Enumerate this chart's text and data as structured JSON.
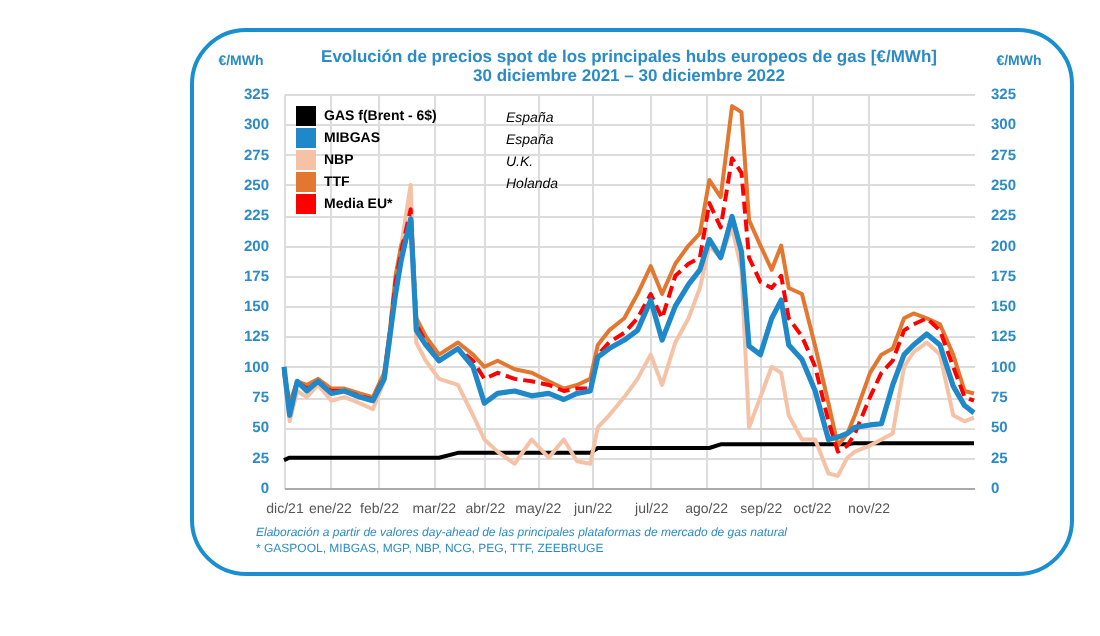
{
  "chart_data": {
    "type": "line",
    "title": "Evolución de precios spot de los principales hubs europeos de gas [€/MWh]",
    "subtitle": "30 diciembre 2021 – 30 diciembre 2022",
    "ylabel": "€/MWh",
    "y2label": "€/MWh",
    "x": [
      "2021-12-30",
      "2022-01-02",
      "2022-01-06",
      "2022-01-11",
      "2022-01-17",
      "2022-01-24",
      "2022-01-31",
      "2022-02-08",
      "2022-02-15",
      "2022-02-21",
      "2022-02-24",
      "2022-02-27",
      "2022-03-02",
      "2022-03-07",
      "2022-03-10",
      "2022-03-15",
      "2022-03-22",
      "2022-04-01",
      "2022-04-09",
      "2022-04-15",
      "2022-04-22",
      "2022-05-01",
      "2022-05-10",
      "2022-05-19",
      "2022-05-27",
      "2022-06-03",
      "2022-06-10",
      "2022-06-14",
      "2022-06-20",
      "2022-06-28",
      "2022-07-05",
      "2022-07-12",
      "2022-07-18",
      "2022-07-25",
      "2022-08-01",
      "2022-08-07",
      "2022-08-12",
      "2022-08-18",
      "2022-08-24",
      "2022-08-29",
      "2022-09-02",
      "2022-09-08",
      "2022-09-14",
      "2022-09-19",
      "2022-09-23",
      "2022-09-30",
      "2022-10-07",
      "2022-10-14",
      "2022-10-19",
      "2022-10-24",
      "2022-10-28",
      "2022-11-05",
      "2022-11-11",
      "2022-11-17",
      "2022-11-23",
      "2022-11-28",
      "2022-12-05",
      "2022-12-12",
      "2022-12-19",
      "2022-12-25",
      "2022-12-30"
    ],
    "series": [
      {
        "name": "GAS f(Brent - 6$)",
        "color": "#000000",
        "values": [
          23,
          25,
          25,
          25,
          25,
          25,
          25,
          25,
          25,
          25,
          25,
          25,
          25,
          25,
          25,
          25,
          25,
          29,
          29,
          29,
          29,
          29,
          29,
          29,
          29,
          29,
          29,
          33,
          33,
          33,
          33,
          33,
          33,
          33,
          33,
          33,
          33,
          36,
          36,
          36,
          36,
          36,
          36,
          36,
          36,
          36,
          36,
          36,
          36,
          36,
          37,
          37,
          37,
          37,
          37,
          37,
          37,
          37,
          37,
          37,
          37
        ]
      },
      {
        "name": "MIBGAS",
        "color": "#1e88c8",
        "values": [
          100,
          60,
          88,
          80,
          88,
          78,
          80,
          75,
          72,
          90,
          125,
          160,
          188,
          222,
          130,
          118,
          105,
          115,
          100,
          70,
          78,
          80,
          76,
          78,
          73,
          78,
          80,
          108,
          115,
          122,
          130,
          155,
          122,
          150,
          168,
          180,
          205,
          190,
          224,
          195,
          117,
          110,
          140,
          155,
          118,
          106,
          80,
          40,
          42,
          45,
          50,
          52,
          53,
          85,
          110,
          118,
          127,
          118,
          84,
          68,
          62
        ]
      },
      {
        "name": "NBP",
        "color": "#f5c2a6",
        "values": [
          95,
          55,
          80,
          75,
          85,
          72,
          75,
          70,
          65,
          88,
          120,
          170,
          200,
          250,
          120,
          105,
          90,
          85,
          60,
          40,
          30,
          20,
          40,
          25,
          40,
          22,
          20,
          50,
          60,
          75,
          90,
          110,
          85,
          120,
          140,
          165,
          200,
          190,
          215,
          180,
          50,
          75,
          100,
          95,
          60,
          40,
          40,
          12,
          10,
          25,
          30,
          35,
          40,
          45,
          100,
          112,
          120,
          110,
          60,
          55,
          58
        ]
      },
      {
        "name": "TTF",
        "color": "#e3772f",
        "values": [
          95,
          70,
          88,
          85,
          90,
          82,
          82,
          78,
          75,
          95,
          130,
          175,
          200,
          215,
          140,
          125,
          110,
          120,
          110,
          100,
          105,
          98,
          95,
          88,
          82,
          85,
          90,
          118,
          130,
          140,
          160,
          183,
          160,
          185,
          200,
          210,
          254,
          240,
          315,
          310,
          221,
          200,
          180,
          200,
          165,
          160,
          117,
          70,
          35,
          45,
          60,
          95,
          110,
          115,
          140,
          144,
          140,
          135,
          110,
          80,
          78
        ]
      },
      {
        "name": "Media EU*",
        "color": "#ff0000",
        "line_style": "dashed",
        "values": [
          98,
          65,
          88,
          82,
          88,
          80,
          80,
          76,
          73,
          92,
          128,
          170,
          195,
          230,
          135,
          120,
          105,
          115,
          105,
          90,
          95,
          90,
          88,
          85,
          80,
          82,
          82,
          110,
          120,
          128,
          140,
          160,
          140,
          175,
          185,
          190,
          235,
          215,
          272,
          260,
          190,
          170,
          165,
          175,
          140,
          125,
          100,
          55,
          30,
          35,
          45,
          75,
          95,
          105,
          130,
          135,
          140,
          130,
          100,
          75,
          72
        ]
      }
    ],
    "xlim": [
      "2021-12-30",
      "2022-12-30"
    ],
    "xticks": [
      {
        "value": "2021-12-30",
        "label": "dic/21"
      },
      {
        "value": "2022-01-23",
        "label": "ene/22"
      },
      {
        "value": "2022-02-18",
        "label": "feb/22"
      },
      {
        "value": "2022-03-19",
        "label": "mar/22"
      },
      {
        "value": "2022-04-15",
        "label": "abr/22"
      },
      {
        "value": "2022-05-13",
        "label": "may/22"
      },
      {
        "value": "2022-06-11",
        "label": "jun/22"
      },
      {
        "value": "2022-07-12",
        "label": "jul/22"
      },
      {
        "value": "2022-08-10",
        "label": "ago/22"
      },
      {
        "value": "2022-09-08",
        "label": "sep/22"
      },
      {
        "value": "2022-10-05",
        "label": "oct/22"
      },
      {
        "value": "2022-11-04",
        "label": "nov/22"
      }
    ],
    "ylim": [
      0,
      325
    ],
    "yticks": [
      0,
      25,
      50,
      75,
      100,
      125,
      150,
      175,
      200,
      225,
      250,
      275,
      300,
      325
    ],
    "y2lim": [
      0,
      325
    ],
    "y2ticks": [
      0,
      25,
      50,
      75,
      100,
      125,
      150,
      175,
      200,
      225,
      250,
      275,
      300,
      325
    ],
    "grid": true,
    "legend": "top left",
    "annotations": [
      "España",
      "España",
      "U.K.",
      "Holanda",
      "Elaboración a partir de valores day-ahead de las principales plataformas de mercado de gas natural",
      "* GASPOOL, MIBGAS, MGP, NBP, NCG, PEG, TTF, ZEEBRUGE"
    ]
  }
}
